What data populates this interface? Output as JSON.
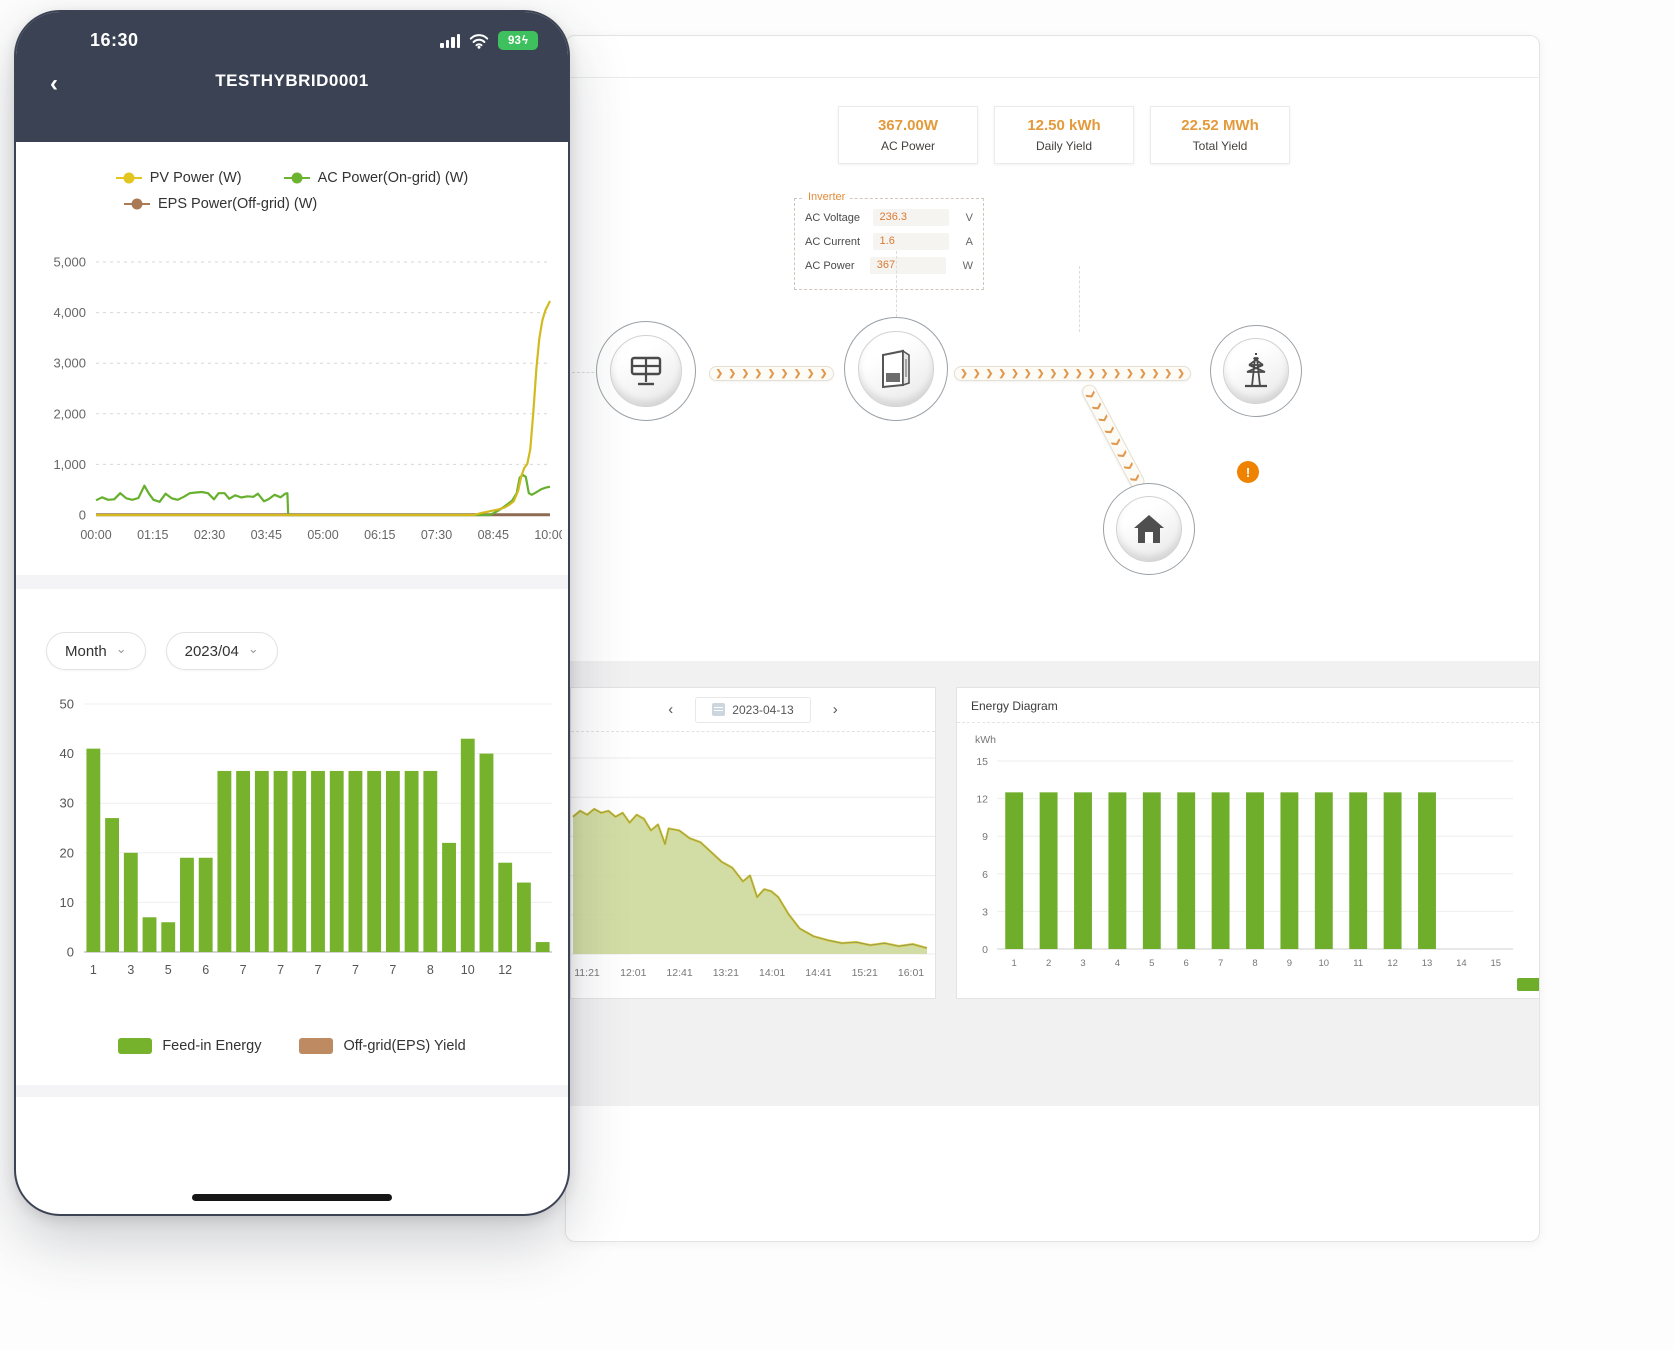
{
  "icons": {
    "back": "‹",
    "chevron_down": "⌄",
    "nav_prev": "‹",
    "nav_next": "›",
    "flow_chevron": "❯",
    "warning": "!",
    "battery_bolt": "ϟ"
  },
  "phone": {
    "status_bar": {
      "time": "16:30",
      "battery_percent": "93"
    },
    "header": {
      "title": "TESTHYBRID0001"
    },
    "power_legend": [
      {
        "label": "PV Power (W)",
        "color": "#e3c51f"
      },
      {
        "label": "AC Power(On-grid) (W)",
        "color": "#6cb32f"
      },
      {
        "label": "EPS Power(Off-grid) (W)",
        "color": "#a97a55"
      }
    ],
    "period_selector": {
      "type_value": "Month",
      "date_value": "2023/04"
    },
    "month_legend": [
      {
        "label": "Feed-in Energy",
        "color": "#76b22c"
      },
      {
        "label": "Off-grid(EPS) Yield",
        "color": "#bd8a62"
      }
    ]
  },
  "desktop": {
    "stats": [
      {
        "value": "367.00W",
        "label": "AC Power"
      },
      {
        "value": "12.50 kWh",
        "label": "Daily Yield"
      },
      {
        "value": "22.52 MWh",
        "label": "Total Yield"
      }
    ],
    "inverter_panel": {
      "title": "Inverter",
      "rows": [
        {
          "label": "AC Voltage",
          "value": "236.3",
          "unit": "V"
        },
        {
          "label": "AC Current",
          "value": "1.6",
          "unit": "A"
        },
        {
          "label": "AC Power",
          "value": "367",
          "unit": "W"
        }
      ]
    },
    "day_panel": {
      "date": "2023-04-13"
    },
    "energy_panel": {
      "title": "Energy Diagram",
      "unit": "kWh"
    }
  },
  "chart_data": [
    {
      "id": "power_curves",
      "type": "line",
      "ylim": [
        0,
        5000
      ],
      "y_ticks": [
        "5,000",
        "4,000",
        "3,000",
        "2,000",
        "1,000",
        "0"
      ],
      "x_ticks": [
        "00:00",
        "01:15",
        "02:30",
        "03:45",
        "05:00",
        "06:15",
        "07:30",
        "08:45",
        "10:00"
      ],
      "x_range_minutes": [
        0,
        600
      ],
      "grid": true,
      "legend_position": "top",
      "series": [
        {
          "name": "PV Power (W)",
          "color": "#d2ba1f",
          "points": [
            [
              0,
              0
            ],
            [
              500,
              0
            ],
            [
              508,
              35
            ],
            [
              516,
              60
            ],
            [
              524,
              85
            ],
            [
              532,
              110
            ],
            [
              540,
              150
            ],
            [
              546,
              200
            ],
            [
              552,
              270
            ],
            [
              558,
              480
            ],
            [
              562,
              760
            ],
            [
              566,
              930
            ],
            [
              570,
              1010
            ],
            [
              574,
              1300
            ],
            [
              578,
              2050
            ],
            [
              582,
              2900
            ],
            [
              586,
              3500
            ],
            [
              590,
              3850
            ],
            [
              594,
              4050
            ],
            [
              600,
              4230
            ]
          ]
        },
        {
          "name": "AC Power(On-grid) (W)",
          "color": "#66b02e",
          "points": [
            [
              0,
              290
            ],
            [
              8,
              350
            ],
            [
              16,
              300
            ],
            [
              24,
              310
            ],
            [
              32,
              430
            ],
            [
              40,
              330
            ],
            [
              48,
              300
            ],
            [
              56,
              335
            ],
            [
              64,
              580
            ],
            [
              70,
              420
            ],
            [
              76,
              300
            ],
            [
              84,
              260
            ],
            [
              92,
              420
            ],
            [
              100,
              330
            ],
            [
              108,
              300
            ],
            [
              116,
              360
            ],
            [
              124,
              430
            ],
            [
              132,
              445
            ],
            [
              140,
              455
            ],
            [
              148,
              430
            ],
            [
              156,
              310
            ],
            [
              162,
              430
            ],
            [
              170,
              430
            ],
            [
              176,
              320
            ],
            [
              184,
              390
            ],
            [
              192,
              345
            ],
            [
              200,
              370
            ],
            [
              208,
              360
            ],
            [
              214,
              420
            ],
            [
              222,
              270
            ],
            [
              228,
              310
            ],
            [
              236,
              400
            ],
            [
              244,
              350
            ],
            [
              250,
              420
            ],
            [
              253,
              430
            ],
            [
              254,
              0
            ],
            [
              520,
              0
            ],
            [
              526,
              40
            ],
            [
              532,
              90
            ],
            [
              538,
              150
            ],
            [
              544,
              215
            ],
            [
              550,
              285
            ],
            [
              556,
              430
            ],
            [
              560,
              740
            ],
            [
              564,
              790
            ],
            [
              568,
              755
            ],
            [
              572,
              430
            ],
            [
              576,
              400
            ],
            [
              582,
              450
            ],
            [
              588,
              505
            ],
            [
              594,
              540
            ],
            [
              600,
              560
            ]
          ]
        },
        {
          "name": "EPS Power(Off-grid) (W)",
          "color": "#8e6b52",
          "points": [
            [
              0,
              4
            ],
            [
              600,
              4
            ]
          ]
        }
      ]
    },
    {
      "id": "monthly_energy",
      "type": "bar",
      "ylim": [
        0,
        50
      ],
      "y_ticks": [
        50,
        40,
        30,
        20,
        10,
        0
      ],
      "values": [
        41,
        27,
        20,
        7,
        6,
        19,
        19,
        36.5,
        36.5,
        36.5,
        36.5,
        36.5,
        36.5,
        36.5,
        36.5,
        36.5,
        36.5,
        36.5,
        36.5,
        22,
        43,
        40,
        18,
        14,
        2
      ],
      "x_labels": [
        "1",
        "3",
        "5",
        "6",
        "7",
        "7",
        "7",
        "7",
        "7",
        "8",
        "10",
        "12"
      ],
      "bar_color": "#76b22c",
      "grid": true,
      "legend_position": "bottom"
    },
    {
      "id": "day_power",
      "type": "area",
      "nav_date": "2023-04-13",
      "x_labels": [
        "11:21",
        "12:01",
        "12:41",
        "13:21",
        "14:01",
        "14:41",
        "15:21",
        "16:01"
      ],
      "points_norm": [
        [
          0,
          0.7
        ],
        [
          2,
          0.73
        ],
        [
          4,
          0.71
        ],
        [
          6,
          0.74
        ],
        [
          8,
          0.72
        ],
        [
          10,
          0.73
        ],
        [
          12,
          0.7
        ],
        [
          14,
          0.72
        ],
        [
          16,
          0.67
        ],
        [
          18,
          0.71
        ],
        [
          20,
          0.69
        ],
        [
          22,
          0.63
        ],
        [
          24,
          0.66
        ],
        [
          26,
          0.56
        ],
        [
          27,
          0.64
        ],
        [
          30,
          0.63
        ],
        [
          33,
          0.59
        ],
        [
          36,
          0.57
        ],
        [
          39,
          0.52
        ],
        [
          42,
          0.47
        ],
        [
          45,
          0.44
        ],
        [
          48,
          0.37
        ],
        [
          50,
          0.4
        ],
        [
          52,
          0.29
        ],
        [
          54,
          0.33
        ],
        [
          56,
          0.32
        ],
        [
          58,
          0.29
        ],
        [
          61,
          0.2
        ],
        [
          64,
          0.13
        ],
        [
          68,
          0.09
        ],
        [
          72,
          0.07
        ],
        [
          76,
          0.055
        ],
        [
          80,
          0.06
        ],
        [
          84,
          0.045
        ],
        [
          88,
          0.055
        ],
        [
          92,
          0.04
        ],
        [
          96,
          0.05
        ],
        [
          100,
          0.03
        ]
      ],
      "fill_color": "#cdd99b",
      "line_color": "#d9c73e",
      "grid": true
    },
    {
      "id": "energy_diagram",
      "type": "bar",
      "title": "Energy Diagram",
      "unit": "kWh",
      "ylim": [
        0,
        15
      ],
      "y_ticks": [
        15,
        12,
        9,
        6,
        3,
        0
      ],
      "categories": [
        "1",
        "2",
        "3",
        "4",
        "5",
        "6",
        "7",
        "8",
        "9",
        "10",
        "11",
        "12",
        "13",
        "14",
        "15"
      ],
      "values": [
        12.5,
        12.5,
        12.5,
        12.5,
        12.5,
        12.5,
        12.5,
        12.5,
        12.5,
        12.5,
        12.5,
        12.5,
        12.5,
        null,
        null
      ],
      "bar_color": "#6fae2b",
      "grid": true,
      "legend_position": "bottom-right"
    }
  ]
}
